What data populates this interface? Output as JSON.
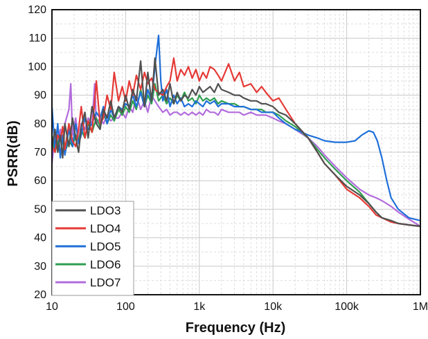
{
  "chart_data": {
    "type": "line",
    "title": "",
    "xlabel": "Frequency (Hz)",
    "ylabel": "PSRR(dB)",
    "xscale": "log",
    "xlim": [
      10,
      1000000
    ],
    "ylim": [
      20,
      120
    ],
    "x_ticks": [
      10,
      100,
      1000,
      10000,
      100000,
      1000000
    ],
    "x_tick_labels": [
      "10",
      "100",
      "1k",
      "10k",
      "100k",
      "1M"
    ],
    "y_ticks": [
      20,
      30,
      40,
      50,
      60,
      70,
      80,
      90,
      100,
      110,
      120
    ],
    "y_tick_labels": [
      "20",
      "30",
      "40",
      "50",
      "60",
      "70",
      "80",
      "90",
      "100",
      "110",
      "120"
    ],
    "grid": true,
    "legend_position": "bottom-left",
    "series": [
      {
        "name": "LDO3",
        "color": "#505050",
        "x": [
          10,
          11,
          12,
          13,
          14,
          15,
          17,
          19,
          21,
          23,
          25,
          28,
          31,
          35,
          40,
          45,
          50,
          56,
          63,
          70,
          80,
          90,
          100,
          112,
          125,
          140,
          160,
          180,
          200,
          225,
          250,
          280,
          320,
          360,
          400,
          450,
          500,
          560,
          630,
          710,
          800,
          900,
          1000,
          1120,
          1250,
          1400,
          1600,
          1800,
          2000,
          2500,
          3000,
          3500,
          4000,
          5000,
          6000,
          7000,
          8000,
          10000,
          12000,
          15000,
          20000,
          30000,
          40000,
          50000,
          70000,
          100000,
          150000,
          200000,
          250000,
          300000,
          400000,
          500000,
          700000,
          1000000
        ],
        "y": [
          71,
          78,
          70,
          76,
          68,
          80,
          72,
          82,
          75,
          70,
          79,
          84,
          75,
          86,
          80,
          78,
          85,
          82,
          88,
          82,
          86,
          84,
          90,
          85,
          92,
          88,
          102,
          86,
          98,
          88,
          103,
          90,
          92,
          88,
          94,
          87,
          91,
          88,
          90,
          89,
          92,
          90,
          93,
          91,
          92,
          93,
          91,
          94,
          92,
          91,
          90,
          90,
          89,
          88,
          88,
          87,
          87,
          86,
          84,
          83,
          80,
          75,
          70,
          66,
          62,
          58,
          55,
          52,
          49,
          47,
          46,
          45,
          44.5,
          44
        ]
      },
      {
        "name": "LDO4",
        "color": "#e53935",
        "x": [
          10,
          11,
          12,
          13,
          14,
          15,
          17,
          19,
          21,
          23,
          25,
          28,
          31,
          35,
          40,
          45,
          50,
          56,
          63,
          70,
          80,
          90,
          100,
          112,
          125,
          140,
          160,
          180,
          200,
          225,
          250,
          280,
          320,
          360,
          400,
          450,
          500,
          560,
          630,
          710,
          800,
          900,
          1000,
          1120,
          1250,
          1400,
          1600,
          1800,
          2000,
          2500,
          3000,
          3500,
          4000,
          5000,
          6000,
          7000,
          8000,
          10000,
          12000,
          15000,
          20000,
          30000,
          40000,
          50000,
          70000,
          100000,
          150000,
          200000,
          250000,
          300000,
          400000,
          500000,
          700000,
          1000000
        ],
        "y": [
          72,
          70,
          76,
          74,
          79,
          71,
          80,
          74,
          72,
          78,
          86,
          75,
          81,
          77,
          95,
          80,
          82,
          90,
          85,
          98,
          88,
          93,
          88,
          95,
          90,
          97,
          92,
          98,
          94,
          96,
          92,
          91,
          90,
          93,
          95,
          103,
          95,
          99,
          97,
          100,
          96,
          99,
          95,
          98,
          96,
          100,
          99,
          97,
          95,
          101,
          95,
          98,
          93,
          94,
          91,
          93,
          91,
          88,
          89,
          85,
          80,
          75,
          70,
          66,
          62,
          57,
          54,
          51,
          48,
          47,
          45.5,
          45,
          44.5,
          44
        ]
      },
      {
        "name": "LDO5",
        "color": "#1e6fd9",
        "x": [
          10,
          11,
          12,
          13,
          14,
          15,
          17,
          19,
          21,
          23,
          25,
          28,
          31,
          35,
          40,
          45,
          50,
          56,
          63,
          70,
          80,
          90,
          100,
          112,
          125,
          140,
          160,
          180,
          200,
          225,
          250,
          280,
          300,
          320,
          360,
          400,
          450,
          500,
          560,
          630,
          710,
          800,
          900,
          1000,
          1120,
          1250,
          1400,
          1600,
          1800,
          2000,
          2500,
          3000,
          3500,
          4000,
          5000,
          6000,
          7000,
          8000,
          10000,
          12000,
          15000,
          20000,
          30000,
          40000,
          50000,
          70000,
          100000,
          130000,
          160000,
          200000,
          230000,
          260000,
          300000,
          350000,
          400000,
          500000,
          700000,
          1000000
        ],
        "y": [
          86,
          71,
          80,
          68,
          76,
          69,
          78,
          72,
          80,
          73,
          76,
          82,
          78,
          80,
          84,
          82,
          86,
          80,
          85,
          82,
          86,
          85,
          87,
          86,
          90,
          86,
          91,
          86,
          92,
          88,
          100,
          111,
          95,
          88,
          92,
          86,
          90,
          87,
          89,
          86,
          87,
          86,
          88,
          87,
          86,
          88,
          87,
          88,
          86,
          87,
          87,
          86,
          86,
          86,
          85,
          85,
          84,
          84,
          84,
          82,
          80,
          78,
          76,
          75,
          74,
          73.5,
          73.5,
          74,
          76,
          77.5,
          77,
          74,
          68,
          60,
          54,
          50,
          47,
          46
        ]
      },
      {
        "name": "LDO6",
        "color": "#2e9e4f",
        "x": [
          10,
          11,
          12,
          13,
          14,
          15,
          17,
          19,
          21,
          23,
          25,
          28,
          31,
          35,
          40,
          45,
          50,
          56,
          63,
          70,
          80,
          90,
          100,
          112,
          125,
          140,
          160,
          180,
          200,
          225,
          250,
          280,
          320,
          360,
          400,
          450,
          500,
          560,
          630,
          710,
          800,
          900,
          1000,
          1120,
          1250,
          1400,
          1600,
          1800,
          2000,
          2500,
          3000,
          3500,
          4000,
          5000,
          6000,
          7000,
          8000,
          10000,
          12000,
          15000,
          20000,
          30000,
          40000,
          50000,
          70000,
          100000,
          150000,
          200000,
          250000,
          300000,
          400000,
          500000,
          700000,
          1000000
        ],
        "y": [
          76,
          70,
          74,
          69,
          75,
          70,
          74,
          72,
          76,
          74,
          78,
          75,
          80,
          77,
          82,
          79,
          84,
          80,
          83,
          81,
          85,
          83,
          86,
          84,
          88,
          85,
          92,
          86,
          90,
          87,
          94,
          88,
          90,
          87,
          89,
          87,
          90,
          88,
          91,
          88,
          89,
          87,
          90,
          88,
          89,
          88,
          89,
          87,
          88,
          87,
          87,
          86,
          86,
          85,
          85,
          85,
          84,
          84,
          83,
          81,
          79,
          75,
          71,
          68,
          64,
          60,
          56,
          52,
          49,
          47,
          46,
          45,
          44.5,
          44
        ]
      },
      {
        "name": "LDO7",
        "color": "#b26cdc",
        "x": [
          10,
          11,
          12,
          13,
          14,
          15,
          17,
          18,
          19,
          21,
          23,
          25,
          28,
          31,
          35,
          38,
          40,
          45,
          50,
          56,
          63,
          70,
          80,
          90,
          100,
          112,
          125,
          140,
          160,
          180,
          200,
          225,
          250,
          280,
          320,
          360,
          400,
          450,
          500,
          560,
          630,
          710,
          800,
          900,
          1000,
          1120,
          1250,
          1400,
          1600,
          1800,
          2000,
          2500,
          3000,
          3500,
          4000,
          5000,
          6000,
          7000,
          8000,
          10000,
          12000,
          15000,
          20000,
          30000,
          40000,
          50000,
          70000,
          100000,
          150000,
          200000,
          250000,
          300000,
          400000,
          500000,
          700000,
          1000000
        ],
        "y": [
          66,
          76,
          72,
          78,
          74,
          80,
          85,
          94,
          76,
          82,
          74,
          80,
          78,
          82,
          80,
          94,
          80,
          82,
          80,
          83,
          81,
          82,
          82,
          84,
          82,
          86,
          84,
          90,
          85,
          88,
          84,
          90,
          88,
          86,
          84,
          85,
          83,
          84,
          84,
          83,
          84,
          83,
          84,
          83,
          84,
          83,
          85,
          84,
          84,
          83,
          85,
          84,
          84,
          84,
          83,
          84,
          83,
          83,
          83,
          82,
          81,
          80,
          78,
          75,
          72,
          69,
          65,
          61,
          57,
          55,
          54,
          53,
          51,
          49,
          46.5,
          44
        ]
      }
    ]
  }
}
